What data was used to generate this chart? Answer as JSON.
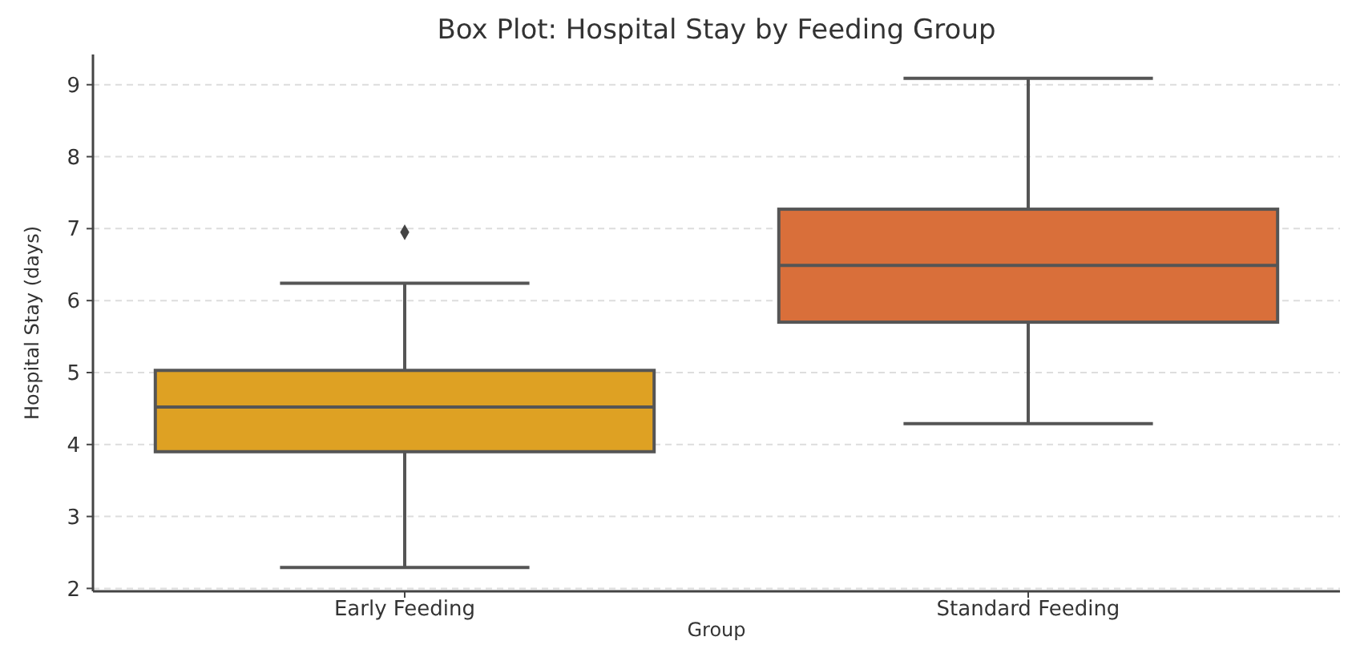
{
  "chart_data": {
    "type": "box",
    "title": "Box Plot: Hospital Stay by Feeding Group",
    "xlabel": "Group",
    "ylabel": "Hospital Stay (days)",
    "categories": [
      "Early Feeding",
      "Standard Feeding"
    ],
    "colors": [
      "#dea123",
      "#d96f3a"
    ],
    "boxes": [
      {
        "low": 2.29,
        "q1": 3.9,
        "median": 4.52,
        "q3": 5.03,
        "high": 6.24,
        "outliers": [
          6.95
        ]
      },
      {
        "low": 4.29,
        "q1": 5.7,
        "median": 6.49,
        "q3": 7.27,
        "high": 9.09
      }
    ],
    "ylim": [
      1.96,
      9.42
    ],
    "yticks": [
      2,
      3,
      4,
      5,
      6,
      7,
      8,
      9
    ],
    "grid": "y"
  }
}
